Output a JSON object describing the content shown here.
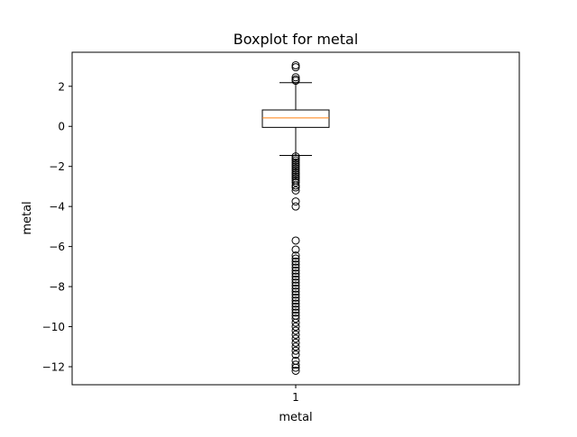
{
  "chart_data": {
    "type": "boxplot",
    "title": "Boxplot for metal",
    "xlabel": "metal",
    "ylabel": "metal",
    "categories": [
      "1"
    ],
    "ylim": [
      -12.9,
      3.7
    ],
    "yticks": [
      2,
      0,
      -2,
      -4,
      -6,
      -8,
      -10,
      -12
    ],
    "ytick_labels": [
      "2",
      "0",
      "−2",
      "−4",
      "−6",
      "−8",
      "−10",
      "−12"
    ],
    "grid": false,
    "box": {
      "q1": -0.05,
      "median": 0.42,
      "q3": 0.82,
      "whisker_low": -1.45,
      "whisker_high": 2.18
    },
    "outliers": [
      3.05,
      2.95,
      2.45,
      2.35,
      2.28,
      -1.5,
      -1.6,
      -1.7,
      -1.8,
      -1.9,
      -2.0,
      -2.1,
      -2.2,
      -2.3,
      -2.4,
      -2.5,
      -2.6,
      -2.7,
      -2.8,
      -2.95,
      -3.05,
      -3.2,
      -3.75,
      -4.0,
      -5.7,
      -6.15,
      -6.45,
      -6.6,
      -6.75,
      -6.9,
      -7.05,
      -7.2,
      -7.35,
      -7.5,
      -7.65,
      -7.8,
      -7.95,
      -8.1,
      -8.25,
      -8.4,
      -8.55,
      -8.7,
      -8.85,
      -9.0,
      -9.15,
      -9.3,
      -9.45,
      -9.6,
      -9.8,
      -10.0,
      -10.2,
      -10.4,
      -10.6,
      -10.8,
      -11.0,
      -11.2,
      -11.4,
      -11.7,
      -11.9,
      -12.05,
      -12.2
    ],
    "colors": {
      "box": "#000000",
      "median": "#ff7f0e",
      "outlier": "#000000"
    }
  }
}
